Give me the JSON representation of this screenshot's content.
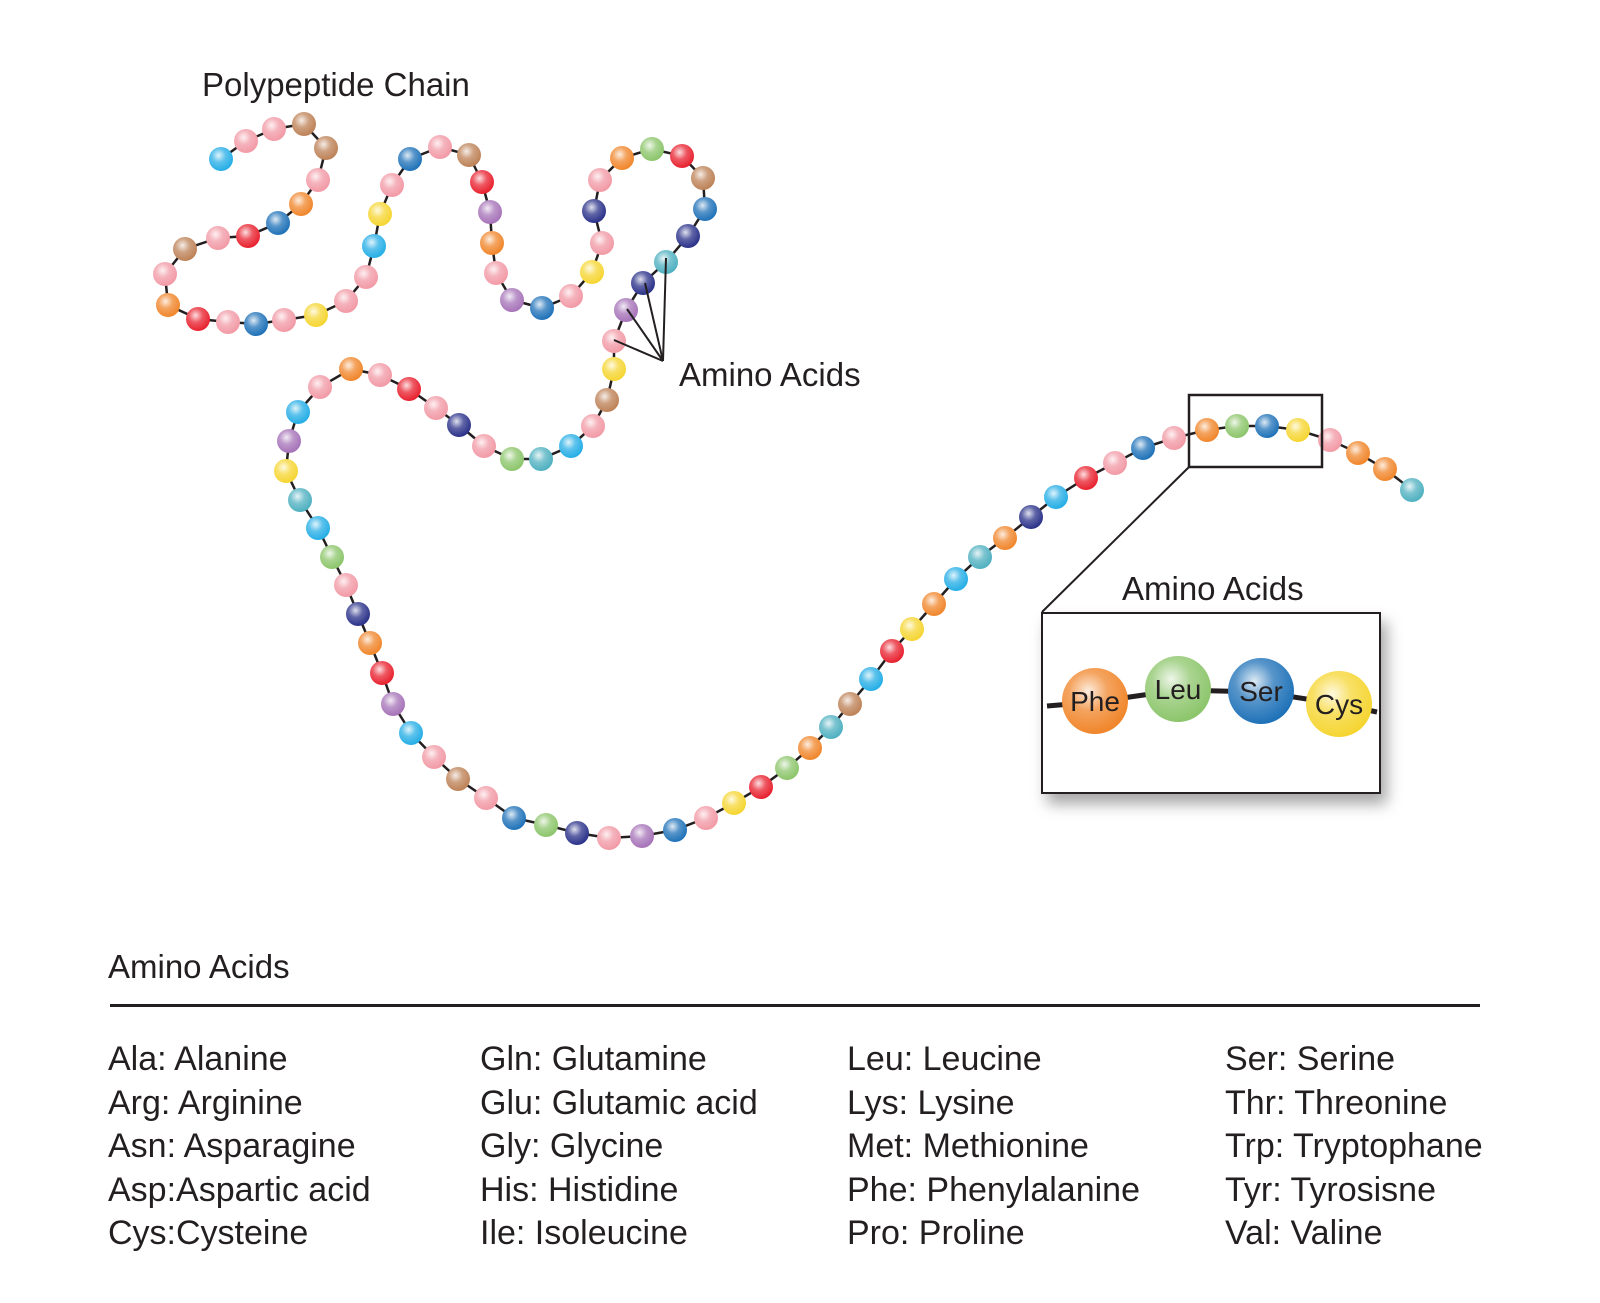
{
  "labels": {
    "chain_title": "Polypeptide Chain",
    "pointer_label": "Amino Acids",
    "inset_title": "Amino Acids"
  },
  "inset": {
    "residues": [
      {
        "code": "Phe",
        "color": "#f0862b"
      },
      {
        "code": "Leu",
        "color": "#8cc56b"
      },
      {
        "code": "Ser",
        "color": "#1f72b8"
      },
      {
        "code": "Cys",
        "color": "#f5d532"
      }
    ]
  },
  "bead_palette": {
    "pink": "#f29aa6",
    "brown": "#bd8257",
    "cyan": "#25aee6",
    "orange": "#f0862b",
    "red": "#e8212f",
    "blue": "#1f72b8",
    "navy": "#2b3289",
    "yellow": "#f5d532",
    "purple": "#a673b8",
    "green": "#8cc56b",
    "teal": "#4fb0c0"
  },
  "chain_sequence": [
    "cyan",
    "pink",
    "pink",
    "brown",
    "brown",
    "pink",
    "orange",
    "blue",
    "red",
    "pink",
    "brown",
    "pink",
    "orange",
    "red",
    "pink",
    "blue",
    "pink",
    "yellow",
    "pink",
    "pink",
    "cyan",
    "yellow",
    "pink",
    "blue",
    "pink",
    "brown",
    "red",
    "purple",
    "orange",
    "pink",
    "purple",
    "blue",
    "pink",
    "yellow",
    "pink",
    "navy",
    "pink",
    "orange",
    "green",
    "red",
    "brown",
    "blue",
    "navy",
    "teal",
    "navy",
    "purple",
    "pink",
    "yellow",
    "brown",
    "pink",
    "cyan",
    "teal",
    "green",
    "pink",
    "navy",
    "pink",
    "red",
    "pink",
    "orange",
    "pink",
    "cyan",
    "purple",
    "yellow",
    "teal",
    "cyan",
    "green",
    "pink",
    "navy",
    "orange",
    "red",
    "purple",
    "cyan",
    "pink",
    "brown",
    "pink",
    "blue",
    "green",
    "navy",
    "pink",
    "purple",
    "blue",
    "pink",
    "yellow",
    "red",
    "green",
    "orange",
    "teal",
    "brown",
    "cyan",
    "red",
    "yellow",
    "orange",
    "cyan",
    "teal",
    "orange",
    "navy",
    "cyan",
    "red",
    "pink",
    "blue",
    "pink",
    "orange",
    "green",
    "blue",
    "yellow",
    "pink",
    "orange",
    "orange",
    "teal"
  ],
  "legend": {
    "title": "Amino Acids",
    "columns": [
      [
        "Ala: Alanine",
        "Arg: Arginine",
        "Asn: Asparagine",
        "Asp:Aspartic acid",
        "Cys:Cysteine"
      ],
      [
        "Gln: Glutamine",
        "Glu: Glutamic acid",
        "Gly: Glycine",
        "His: Histidine",
        "Ile: Isoleucine"
      ],
      [
        "Leu: Leucine",
        "Lys: Lysine",
        "Met: Methionine",
        "Phe: Phenylalanine",
        "Pro: Proline"
      ],
      [
        "Ser: Serine",
        "Thr: Threonine",
        "Trp: Tryptophane",
        "Tyr: Tyrosisne",
        "Val: Valine"
      ]
    ]
  }
}
